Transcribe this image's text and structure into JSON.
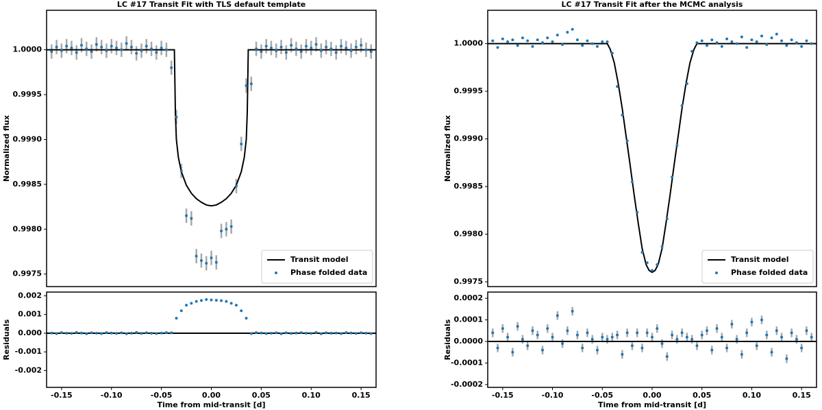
{
  "chart_data": [
    {
      "type": "scatter",
      "title": "LC #17 Transit Fit with TLS default template",
      "ylabel": "Normalized flux",
      "xlim": [
        -0.165,
        0.165
      ],
      "ylim": [
        0.99736,
        1.00044
      ],
      "yticks": [
        0.9975,
        {
          "value": 0.998,
          "label": "0.9980"
        },
        0.9985,
        {
          "value": 0.999,
          "label": "0.9990"
        },
        0.9995,
        {
          "value": 1,
          "label": "1.0000"
        }
      ],
      "legend": "lower right",
      "series": [
        {
          "name": "Transit model",
          "type": "line",
          "color": "#000000",
          "x": [
            -0.165,
            -0.037,
            -0.036,
            -0.035,
            -0.033,
            -0.03,
            -0.025,
            -0.02,
            -0.015,
            -0.01,
            -0.005,
            0,
            0.005,
            0.01,
            0.015,
            0.02,
            0.025,
            0.03,
            0.033,
            0.035,
            0.036,
            0.037,
            0.165
          ],
          "values": [
            1,
            1,
            0.9993,
            0.999,
            0.9988,
            0.99864,
            0.99849,
            0.9984,
            0.99834,
            0.9983,
            0.99827,
            0.99826,
            0.99827,
            0.9983,
            0.99834,
            0.9984,
            0.99849,
            0.99864,
            0.9988,
            0.999,
            0.9993,
            1,
            1
          ]
        },
        {
          "name": "Phase folded data",
          "color": "#1f77b4",
          "error": 8e-05,
          "x": [
            -0.16,
            -0.155,
            -0.15,
            -0.145,
            -0.14,
            -0.135,
            -0.13,
            -0.125,
            -0.12,
            -0.115,
            -0.11,
            -0.105,
            -0.1,
            -0.095,
            -0.09,
            -0.085,
            -0.08,
            -0.075,
            -0.07,
            -0.065,
            -0.06,
            -0.055,
            -0.05,
            -0.045,
            -0.04,
            -0.035,
            -0.03,
            -0.025,
            -0.02,
            -0.015,
            -0.01,
            -0.005,
            0,
            0.005,
            0.01,
            0.015,
            0.02,
            0.025,
            0.03,
            0.035,
            0.04,
            0.045,
            0.05,
            0.055,
            0.06,
            0.065,
            0.07,
            0.075,
            0.08,
            0.085,
            0.09,
            0.095,
            0.1,
            0.105,
            0.11,
            0.115,
            0.12,
            0.125,
            0.13,
            0.135,
            0.14,
            0.145,
            0.15,
            0.155,
            0.16
          ],
          "values": [
            0.99998,
            1.00003,
            0.99999,
            1.00004,
            1.00002,
            0.99997,
            1.00005,
            1.00001,
            0.99998,
            1.00006,
            1.00003,
            0.99999,
            1.00004,
            1.00002,
            1.0,
            1.00007,
            1.00003,
            0.99996,
            0.99999,
            1.00004,
            1.00001,
            0.99997,
            1.00002,
            1.0,
            0.9998,
            0.99925,
            0.99865,
            0.99815,
            0.99812,
            0.9977,
            0.99765,
            0.99762,
            0.99768,
            0.99763,
            0.99798,
            0.998,
            0.99803,
            0.99848,
            0.99895,
            0.9996,
            0.99962,
            1.00001,
            0.99998,
            1.00004,
            1.00002,
            0.99999,
            1.00003,
            0.99997,
            1.00005,
            1.00001,
            0.99998,
            1.00004,
            1.00002,
            1.00006,
            0.99999,
            1.00003,
            1.00001,
            0.99997,
            1.00004,
            1.00002,
            0.99999,
            1.00003,
            1.00005,
            1.0,
            0.99998
          ]
        }
      ]
    },
    {
      "type": "scatter",
      "ylabel": "Residuals",
      "xlabel": "Time from mid-transit [d]",
      "xlim": [
        -0.165,
        0.165
      ],
      "ylim": [
        -0.0029,
        0.0022
      ],
      "xticks": [
        -0.15,
        {
          "value": -0.1,
          "label": "-0.10"
        },
        -0.05,
        {
          "value": 0,
          "label": "0.00"
        },
        0.05,
        {
          "value": 0.1,
          "label": "0.10"
        },
        0.15
      ],
      "yticks": [
        -0.002,
        -0.001,
        {
          "value": 0,
          "label": "0.000"
        },
        0.001,
        0.002
      ],
      "hline": 0,
      "series": [
        {
          "color": "#1f77b4",
          "x": [
            -0.16,
            -0.155,
            -0.15,
            -0.145,
            -0.14,
            -0.135,
            -0.13,
            -0.125,
            -0.12,
            -0.115,
            -0.11,
            -0.105,
            -0.1,
            -0.095,
            -0.09,
            -0.085,
            -0.08,
            -0.075,
            -0.07,
            -0.065,
            -0.06,
            -0.055,
            -0.05,
            -0.045,
            -0.04,
            -0.035,
            -0.03,
            -0.025,
            -0.02,
            -0.015,
            -0.01,
            -0.005,
            0,
            0.005,
            0.01,
            0.015,
            0.02,
            0.025,
            0.03,
            0.035,
            0.04,
            0.045,
            0.05,
            0.055,
            0.06,
            0.065,
            0.07,
            0.075,
            0.08,
            0.085,
            0.09,
            0.095,
            0.1,
            0.105,
            0.11,
            0.115,
            0.12,
            0.125,
            0.13,
            0.135,
            0.14,
            0.145,
            0.15,
            0.155,
            0.16
          ],
          "values": [
            1e-05,
            -2e-05,
            3e-05,
            0.0,
            -1e-05,
            4e-05,
            1e-05,
            -3e-05,
            2e-05,
            0.0,
            -2e-05,
            3e-05,
            1e-05,
            -1e-05,
            2e-05,
            -3e-05,
            0.0,
            4e-05,
            -1e-05,
            2e-05,
            0.0,
            -2e-05,
            1e-05,
            3e-05,
            2e-05,
            0.0008,
            0.0012,
            0.0015,
            0.0016,
            0.0017,
            0.00175,
            0.0018,
            0.00178,
            0.00176,
            0.00174,
            0.0017,
            0.0016,
            0.0015,
            0.0012,
            0.0008,
            -2e-05,
            3e-05,
            1e-05,
            -2e-05,
            0.0,
            2e-05,
            -3e-05,
            2e-05,
            -1e-05,
            1e-05,
            3e-05,
            0.0,
            -1e-05,
            4e-05,
            -3e-05,
            2e-05,
            0.0,
            1e-05,
            -2e-05,
            3e-05,
            1e-05,
            -1e-05,
            2e-05,
            0.0,
            -2e-05
          ]
        }
      ]
    },
    {
      "type": "scatter",
      "title": "LC #17 Transit Fit after the MCMC analysis",
      "ylabel": "Normalized flux",
      "xlim": [
        -0.165,
        0.165
      ],
      "ylim": [
        0.99745,
        1.00035
      ],
      "yticks": [
        0.9975,
        {
          "value": 0.998,
          "label": "0.9980"
        },
        0.9985,
        {
          "value": 0.999,
          "label": "0.9990"
        },
        0.9995,
        {
          "value": 1,
          "label": "1.0000"
        }
      ],
      "legend": "lower right",
      "series": [
        {
          "name": "Transit model",
          "type": "line",
          "color": "#000000",
          "x": [
            -0.165,
            -0.045,
            -0.042,
            -0.038,
            -0.034,
            -0.03,
            -0.026,
            -0.022,
            -0.018,
            -0.014,
            -0.01,
            -0.006,
            -0.003,
            0,
            0.003,
            0.006,
            0.01,
            0.014,
            0.018,
            0.022,
            0.026,
            0.03,
            0.034,
            0.038,
            0.042,
            0.045,
            0.165
          ],
          "values": [
            1,
            1,
            0.99994,
            0.9998,
            0.99958,
            0.99932,
            0.99902,
            0.99872,
            0.99841,
            0.99812,
            0.99785,
            0.99768,
            0.99762,
            0.9976,
            0.99762,
            0.99768,
            0.99785,
            0.99812,
            0.99841,
            0.99872,
            0.99902,
            0.99932,
            0.99958,
            0.9998,
            0.99994,
            1,
            1
          ]
        },
        {
          "name": "Phase folded data",
          "color": "#1f77b4",
          "x": [
            -0.16,
            -0.155,
            -0.15,
            -0.145,
            -0.14,
            -0.135,
            -0.13,
            -0.125,
            -0.12,
            -0.115,
            -0.11,
            -0.105,
            -0.1,
            -0.095,
            -0.09,
            -0.085,
            -0.08,
            -0.075,
            -0.07,
            -0.065,
            -0.06,
            -0.055,
            -0.05,
            -0.045,
            -0.04,
            -0.035,
            -0.03,
            -0.025,
            -0.02,
            -0.015,
            -0.01,
            -0.005,
            0,
            0.005,
            0.01,
            0.015,
            0.02,
            0.025,
            0.03,
            0.035,
            0.04,
            0.045,
            0.05,
            0.055,
            0.06,
            0.065,
            0.07,
            0.075,
            0.08,
            0.085,
            0.09,
            0.095,
            0.1,
            0.105,
            0.11,
            0.115,
            0.12,
            0.125,
            0.13,
            0.135,
            0.14,
            0.145,
            0.15,
            0.155,
            0.16
          ],
          "values": [
            1.00003,
            0.99996,
            1.00005,
            1.00002,
            1.00004,
            0.99998,
            1.00006,
            1.00003,
            0.99997,
            1.00004,
            1.00001,
            1.00006,
            1.00002,
            1.00009,
            0.99999,
            1.00012,
            1.00015,
            1.00004,
            0.99998,
            1.00003,
            1.0,
            0.99997,
            1.00002,
            1.00002,
            0.9999,
            0.99955,
            0.99925,
            0.99898,
            0.99855,
            0.99823,
            0.99781,
            0.9977,
            0.99762,
            0.99768,
            0.99787,
            0.99816,
            0.9986,
            0.99893,
            0.99935,
            0.99958,
            0.99992,
            1.00001,
            1.00003,
            0.99998,
            1.00004,
            1.00001,
            0.99997,
            1.00005,
            1.00002,
            1.0,
            1.00007,
            0.99996,
            1.00004,
            1.00002,
            1.00008,
            0.99999,
            1.00006,
            1.0001,
            1.00003,
            0.99998,
            1.00004,
            1.00001,
            0.99997,
            1.00003,
            1.0
          ]
        }
      ]
    },
    {
      "type": "scatter",
      "ylabel": "Residuals",
      "xlabel": "Time from mid-transit [d]",
      "xlim": [
        -0.165,
        0.165
      ],
      "ylim": [
        -0.000213,
        0.000229
      ],
      "xticks": [
        -0.15,
        {
          "value": -0.1,
          "label": "-0.10"
        },
        -0.05,
        {
          "value": 0,
          "label": "0.00"
        },
        0.05,
        {
          "value": 0.1,
          "label": "0.10"
        },
        0.15
      ],
      "yticks": [
        -0.0002,
        -0.0001,
        {
          "value": 0,
          "label": "0.0000"
        },
        0.0001,
        0.0002
      ],
      "hline": 0,
      "series": [
        {
          "color": "#1f77b4",
          "error": 2e-05,
          "x": [
            -0.16,
            -0.155,
            -0.15,
            -0.145,
            -0.14,
            -0.135,
            -0.13,
            -0.125,
            -0.12,
            -0.115,
            -0.11,
            -0.105,
            -0.1,
            -0.095,
            -0.09,
            -0.085,
            -0.08,
            -0.075,
            -0.07,
            -0.065,
            -0.06,
            -0.055,
            -0.05,
            -0.045,
            -0.04,
            -0.035,
            -0.03,
            -0.025,
            -0.02,
            -0.015,
            -0.01,
            -0.005,
            0,
            0.005,
            0.01,
            0.015,
            0.02,
            0.025,
            0.03,
            0.035,
            0.04,
            0.045,
            0.05,
            0.055,
            0.06,
            0.065,
            0.07,
            0.075,
            0.08,
            0.085,
            0.09,
            0.095,
            0.1,
            0.105,
            0.11,
            0.115,
            0.12,
            0.125,
            0.13,
            0.135,
            0.14,
            0.145,
            0.15,
            0.155,
            0.16
          ],
          "values": [
            4e-05,
            -3e-05,
            6e-05,
            2e-05,
            -5e-05,
            7e-05,
            1e-05,
            -2e-05,
            5e-05,
            3e-05,
            -4e-05,
            6e-05,
            2e-05,
            0.00012,
            -1e-05,
            5e-05,
            0.00014,
            3e-05,
            -3e-05,
            4e-05,
            1e-05,
            -4e-05,
            2e-05,
            1e-05,
            2e-05,
            3e-05,
            -6e-05,
            4e-05,
            -2e-05,
            4e-05,
            -3e-05,
            4e-05,
            2e-05,
            6e-05,
            -1e-05,
            -7e-05,
            3e-05,
            1e-05,
            4e-05,
            2e-05,
            1e-05,
            -2e-05,
            3e-05,
            5e-05,
            -4e-05,
            6e-05,
            2e-05,
            -3e-05,
            8e-05,
            1e-05,
            -6e-05,
            4e-05,
            9e-05,
            -2e-05,
            0.0001,
            3e-05,
            -5e-05,
            5e-05,
            2e-05,
            -8e-05,
            4e-05,
            1e-05,
            -3e-05,
            5e-05,
            2e-05
          ]
        }
      ]
    }
  ]
}
